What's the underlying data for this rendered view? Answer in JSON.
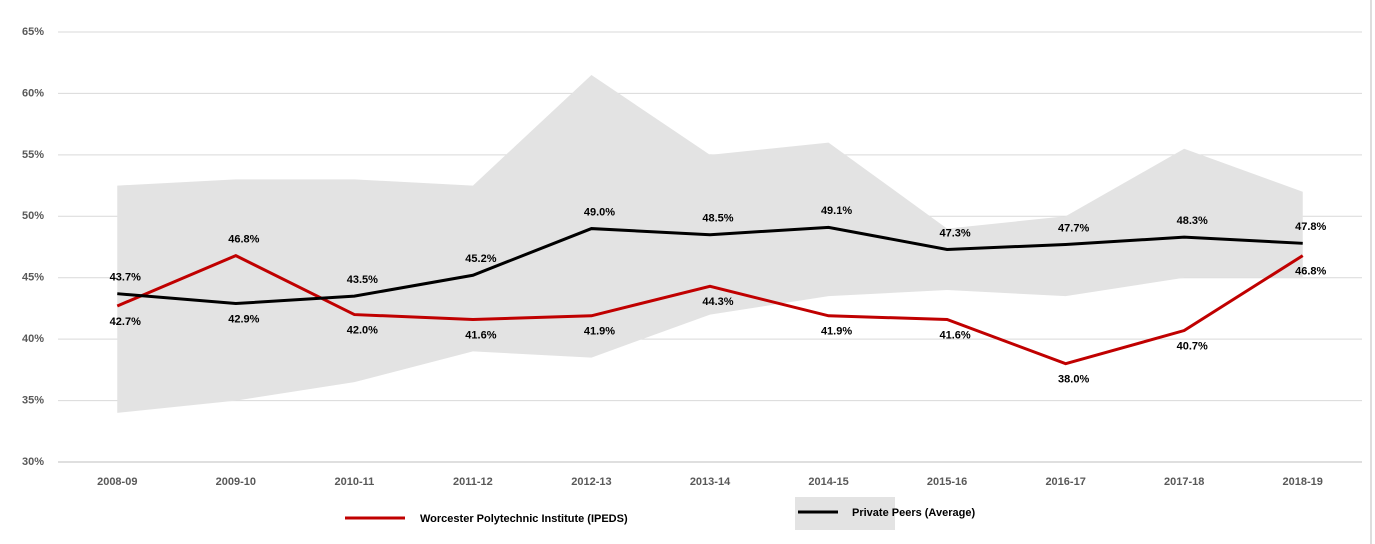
{
  "chart_data": {
    "type": "line",
    "categories": [
      "2008-09",
      "2009-10",
      "2010-11",
      "2011-12",
      "2012-13",
      "2013-14",
      "2014-15",
      "2015-16",
      "2016-17",
      "2017-18",
      "2018-19"
    ],
    "series": [
      {
        "name": "Worcester Polytechnic Institute (IPEDS)",
        "color": "#c00000",
        "values": [
          42.7,
          46.8,
          42.0,
          41.6,
          41.9,
          44.3,
          41.9,
          41.6,
          38.0,
          40.7,
          46.8
        ],
        "value_labels": [
          "42.7%",
          "46.8%",
          "42.0%",
          "41.6%",
          "41.9%",
          "44.3%",
          "41.9%",
          "41.6%",
          "38.0%",
          "40.7%",
          "46.8%"
        ]
      },
      {
        "name": "Private Peers (Average)",
        "color": "#000000",
        "values": [
          43.7,
          42.9,
          43.5,
          45.2,
          49.0,
          48.5,
          49.1,
          47.3,
          47.7,
          48.3,
          47.8
        ],
        "value_labels": [
          "43.7%",
          "42.9%",
          "43.5%",
          "45.2%",
          "49.0%",
          "48.5%",
          "49.1%",
          "47.3%",
          "47.7%",
          "48.3%",
          "47.8%"
        ]
      }
    ],
    "range": {
      "color": "#e3e3e3",
      "upper": [
        52.5,
        53,
        53,
        52.5,
        61.5,
        55,
        56,
        49,
        50,
        55.5,
        52
      ],
      "lower": [
        34,
        35,
        36.5,
        39,
        38.5,
        42,
        43.5,
        44,
        43.5,
        45,
        45
      ]
    },
    "ylim": [
      30,
      65
    ],
    "yticks": [
      {
        "value": 30,
        "label": "30%"
      },
      {
        "value": 35,
        "label": "35%"
      },
      {
        "value": 40,
        "label": "40%"
      },
      {
        "value": 45,
        "label": "45%"
      },
      {
        "value": 50,
        "label": "50%"
      },
      {
        "value": 55,
        "label": "55%"
      },
      {
        "value": 60,
        "label": "60%"
      },
      {
        "value": 65,
        "label": "65%"
      }
    ],
    "grid": true
  }
}
